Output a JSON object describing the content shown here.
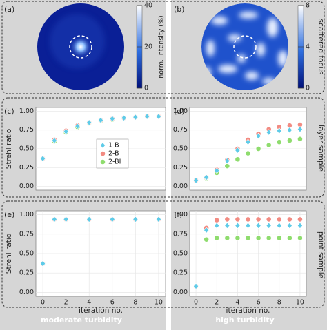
{
  "row_labels": [
    "scattered focus",
    "layer sample",
    "point sample"
  ],
  "column_labels": [
    "moderate turbidity",
    "high turbidity"
  ],
  "chart_data": [
    {
      "type": "image",
      "panel_label": "(a)",
      "colorbar_label": "norm. intensity (%)",
      "clim": [
        0,
        40
      ],
      "cticks": [
        0,
        20,
        40
      ]
    },
    {
      "type": "image",
      "panel_label": "(b)",
      "clim": [
        0,
        8
      ],
      "cticks": [
        0,
        4,
        8
      ]
    },
    {
      "type": "scatter",
      "panel_label": "(c)",
      "ylabel": "Strehl ratio",
      "legend": "center right",
      "x": [
        0,
        1,
        2,
        3,
        4,
        5,
        6,
        7,
        8,
        9,
        10
      ],
      "xlim": [
        -0.6,
        10.6
      ],
      "ylim": [
        -0.05,
        1.05
      ],
      "yticks": [
        {
          "value": 0,
          "label": "0.00"
        },
        {
          "value": 0.25,
          "label": "0.25"
        },
        {
          "value": 0.5,
          "label": "0.50"
        },
        {
          "value": 0.75,
          "label": "0.75"
        },
        {
          "value": 1,
          "label": "1.00"
        }
      ],
      "series": [
        {
          "name": "1-B",
          "color": "#5ecbe8",
          "marker": "diamond",
          "values": [
            0.37,
            0.61,
            0.73,
            0.8,
            0.85,
            0.88,
            0.9,
            0.91,
            0.92,
            0.93,
            0.93
          ]
        },
        {
          "name": "2-B",
          "color": "#f28b82",
          "marker": "circle",
          "values": [
            0.37,
            0.62,
            0.74,
            0.81,
            0.85,
            0.88,
            0.9,
            0.91,
            0.92,
            0.93,
            0.93
          ]
        },
        {
          "name": "2-BI",
          "color": "#8fdc6e",
          "marker": "circle",
          "values": [
            0.37,
            0.6,
            0.72,
            0.79,
            0.84,
            0.87,
            0.89,
            0.91,
            0.92,
            0.93,
            0.93
          ]
        }
      ]
    },
    {
      "type": "scatter",
      "panel_label": "(d)",
      "x": [
        0,
        1,
        2,
        3,
        4,
        5,
        6,
        7,
        8,
        9,
        10
      ],
      "xlim": [
        -0.6,
        10.6
      ],
      "ylim": [
        -0.05,
        1.05
      ],
      "yticks": [
        {
          "value": 0,
          "label": "0.00"
        },
        {
          "value": 0.25,
          "label": "0.25"
        },
        {
          "value": 0.5,
          "label": "0.50"
        },
        {
          "value": 0.75,
          "label": "0.75"
        },
        {
          "value": 1,
          "label": "1.00"
        }
      ],
      "series": [
        {
          "name": "1-B",
          "color": "#5ecbe8",
          "marker": "diamond",
          "values": [
            0.08,
            0.12,
            0.21,
            0.34,
            0.48,
            0.59,
            0.67,
            0.72,
            0.74,
            0.75,
            0.76
          ]
        },
        {
          "name": "2-B",
          "color": "#f28b82",
          "marker": "circle",
          "values": [
            0.08,
            0.12,
            0.22,
            0.35,
            0.5,
            0.62,
            0.7,
            0.76,
            0.79,
            0.81,
            0.82
          ]
        },
        {
          "name": "2-BI",
          "color": "#8fdc6e",
          "marker": "circle",
          "values": [
            0.08,
            0.11,
            0.18,
            0.27,
            0.36,
            0.44,
            0.5,
            0.55,
            0.59,
            0.61,
            0.63
          ]
        }
      ]
    },
    {
      "type": "scatter",
      "panel_label": "(e)",
      "ylabel": "Strehl ratio",
      "xlabel": "iteration no.",
      "x": [
        0,
        1,
        2,
        4,
        6,
        8,
        10
      ],
      "xlim": [
        -0.6,
        10.6
      ],
      "xticks": [
        0,
        2,
        4,
        6,
        8,
        10
      ],
      "ylim": [
        -0.05,
        1.05
      ],
      "yticks": [
        {
          "value": 0,
          "label": "0.00"
        },
        {
          "value": 0.25,
          "label": "0.25"
        },
        {
          "value": 0.5,
          "label": "0.50"
        },
        {
          "value": 0.75,
          "label": "0.75"
        },
        {
          "value": 1,
          "label": "1.00"
        }
      ],
      "series": [
        {
          "name": "1-B",
          "color": "#5ecbe8",
          "marker": "diamond",
          "values": [
            0.37,
            0.94,
            0.94,
            0.94,
            0.94,
            0.94,
            0.94
          ]
        },
        {
          "name": "2-B",
          "color": "#f28b82",
          "marker": "circle",
          "values": [
            0.37,
            0.94,
            0.94,
            0.94,
            0.94,
            0.94,
            0.94
          ]
        },
        {
          "name": "2-BI",
          "color": "#8fdc6e",
          "marker": "circle",
          "values": [
            0.37,
            0.94,
            0.94,
            0.94,
            0.94,
            0.94,
            0.94
          ]
        }
      ]
    },
    {
      "type": "scatter",
      "panel_label": "(f)",
      "xlabel": "iteration no.",
      "x": [
        0,
        1,
        2,
        3,
        4,
        5,
        6,
        7,
        8,
        9,
        10
      ],
      "xlim": [
        -0.6,
        10.6
      ],
      "xticks": [
        0,
        2,
        4,
        6,
        8,
        10
      ],
      "ylim": [
        -0.05,
        1.05
      ],
      "yticks": [
        {
          "value": 0,
          "label": "0.00"
        },
        {
          "value": 0.25,
          "label": "0.25"
        },
        {
          "value": 0.5,
          "label": "0.50"
        },
        {
          "value": 0.75,
          "label": "0.75"
        },
        {
          "value": 1,
          "label": "1.00"
        }
      ],
      "series": [
        {
          "name": "1-B",
          "color": "#5ecbe8",
          "marker": "diamond",
          "values": [
            0.08,
            0.8,
            0.86,
            0.86,
            0.86,
            0.86,
            0.86,
            0.86,
            0.86,
            0.86,
            0.86
          ]
        },
        {
          "name": "2-B",
          "color": "#f28b82",
          "marker": "circle",
          "values": [
            0.08,
            0.83,
            0.93,
            0.94,
            0.94,
            0.94,
            0.94,
            0.94,
            0.94,
            0.94,
            0.94
          ]
        },
        {
          "name": "2-BI",
          "color": "#8fdc6e",
          "marker": "circle",
          "values": [
            0.08,
            0.68,
            0.7,
            0.7,
            0.7,
            0.7,
            0.7,
            0.7,
            0.7,
            0.7,
            0.7
          ]
        }
      ]
    }
  ]
}
